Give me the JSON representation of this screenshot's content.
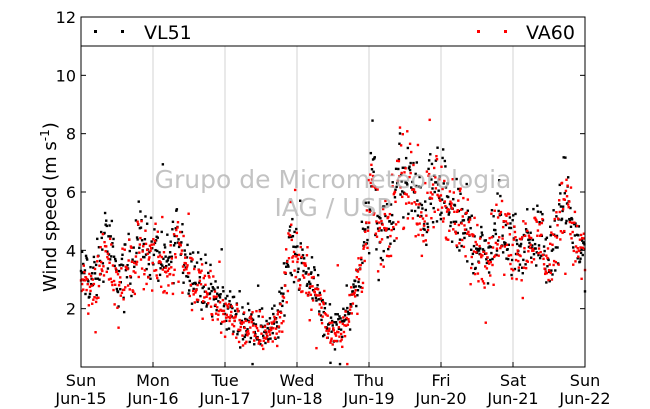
{
  "chart_data": {
    "type": "scatter",
    "ylabel": "Wind speed",
    "ylabel_unit": "(m s",
    "ylabel_unit_exp": "-1",
    "ylabel_unit_close": ")",
    "ylim": [
      0,
      12
    ],
    "xlim": [
      0,
      7
    ],
    "y_ticks": [
      "2",
      "4",
      "6",
      "8",
      "10",
      "12"
    ],
    "x_ticks": [
      {
        "day": "Sun",
        "date": "Jun-15"
      },
      {
        "day": "Mon",
        "date": "Jun-16"
      },
      {
        "day": "Tue",
        "date": "Jun-17"
      },
      {
        "day": "Wed",
        "date": "Jun-18"
      },
      {
        "day": "Thu",
        "date": "Jun-19"
      },
      {
        "day": "Fri",
        "date": "Jun-20"
      },
      {
        "day": "Sat",
        "date": "Jun-21"
      },
      {
        "day": "Sun",
        "date": "Jun-22"
      }
    ],
    "grid": "vertical",
    "legend_placement": "top",
    "series": [
      {
        "name": "VL51",
        "color": "#000000",
        "profile": [
          [
            0,
            3.2
          ],
          [
            0.2,
            3.0
          ],
          [
            0.35,
            4.6
          ],
          [
            0.5,
            3.0
          ],
          [
            0.7,
            3.6
          ],
          [
            0.8,
            4.5
          ],
          [
            1.0,
            4.0
          ],
          [
            1.2,
            3.5
          ],
          [
            1.35,
            4.8
          ],
          [
            1.5,
            3.4
          ],
          [
            1.7,
            2.8
          ],
          [
            1.9,
            2.3
          ],
          [
            2.1,
            1.9
          ],
          [
            2.3,
            1.5
          ],
          [
            2.5,
            1.3
          ],
          [
            2.7,
            1.4
          ],
          [
            2.8,
            2.2
          ],
          [
            2.9,
            4.6
          ],
          [
            3.0,
            3.8
          ],
          [
            3.1,
            3.3
          ],
          [
            3.2,
            3.0
          ],
          [
            3.35,
            2.0
          ],
          [
            3.5,
            1.2
          ],
          [
            3.65,
            1.7
          ],
          [
            3.8,
            2.5
          ],
          [
            3.9,
            3.8
          ],
          [
            4.0,
            5.2
          ],
          [
            4.05,
            7.0
          ],
          [
            4.1,
            5.0
          ],
          [
            4.2,
            4.5
          ],
          [
            4.3,
            4.8
          ],
          [
            4.4,
            6.5
          ],
          [
            4.5,
            6.5
          ],
          [
            4.6,
            6.2
          ],
          [
            4.75,
            5.2
          ],
          [
            4.9,
            6.0
          ],
          [
            5.0,
            5.9
          ],
          [
            5.2,
            5.0
          ],
          [
            5.4,
            4.5
          ],
          [
            5.5,
            4.2
          ],
          [
            5.6,
            3.8
          ],
          [
            5.8,
            4.8
          ],
          [
            6.0,
            4.2
          ],
          [
            6.2,
            4.3
          ],
          [
            6.4,
            4.5
          ],
          [
            6.5,
            3.5
          ],
          [
            6.65,
            5.0
          ],
          [
            6.75,
            5.9
          ],
          [
            6.85,
            4.5
          ],
          [
            7.0,
            3.8
          ]
        ]
      },
      {
        "name": "VA60",
        "color": "#ff0000",
        "profile": [
          [
            0,
            2.9
          ],
          [
            0.2,
            2.7
          ],
          [
            0.35,
            4.2
          ],
          [
            0.5,
            2.8
          ],
          [
            0.7,
            3.3
          ],
          [
            0.8,
            4.1
          ],
          [
            1.0,
            3.7
          ],
          [
            1.2,
            3.2
          ],
          [
            1.35,
            4.4
          ],
          [
            1.5,
            3.2
          ],
          [
            1.7,
            2.6
          ],
          [
            1.9,
            2.1
          ],
          [
            2.1,
            1.7
          ],
          [
            2.3,
            1.3
          ],
          [
            2.5,
            1.2
          ],
          [
            2.7,
            1.3
          ],
          [
            2.8,
            2.0
          ],
          [
            2.9,
            4.4
          ],
          [
            3.0,
            3.6
          ],
          [
            3.1,
            3.1
          ],
          [
            3.2,
            2.8
          ],
          [
            3.35,
            1.8
          ],
          [
            3.5,
            1.1
          ],
          [
            3.65,
            1.5
          ],
          [
            3.8,
            2.3
          ],
          [
            3.9,
            3.6
          ],
          [
            4.0,
            5.0
          ],
          [
            4.05,
            6.6
          ],
          [
            4.1,
            4.8
          ],
          [
            4.2,
            4.3
          ],
          [
            4.3,
            4.7
          ],
          [
            4.4,
            6.3
          ],
          [
            4.5,
            6.3
          ],
          [
            4.6,
            6.0
          ],
          [
            4.75,
            5.0
          ],
          [
            4.9,
            6.1
          ],
          [
            5.0,
            6.0
          ],
          [
            5.2,
            5.1
          ],
          [
            5.4,
            4.4
          ],
          [
            5.5,
            4.1
          ],
          [
            5.6,
            3.7
          ],
          [
            5.8,
            4.7
          ],
          [
            6.0,
            4.1
          ],
          [
            6.2,
            4.2
          ],
          [
            6.4,
            4.4
          ],
          [
            6.5,
            3.4
          ],
          [
            6.65,
            5.1
          ],
          [
            6.75,
            6.1
          ],
          [
            6.85,
            4.4
          ],
          [
            7.0,
            3.7
          ]
        ]
      }
    ],
    "watermark": [
      "Grupo de Micrometeorologia",
      "IAG / USP"
    ]
  }
}
